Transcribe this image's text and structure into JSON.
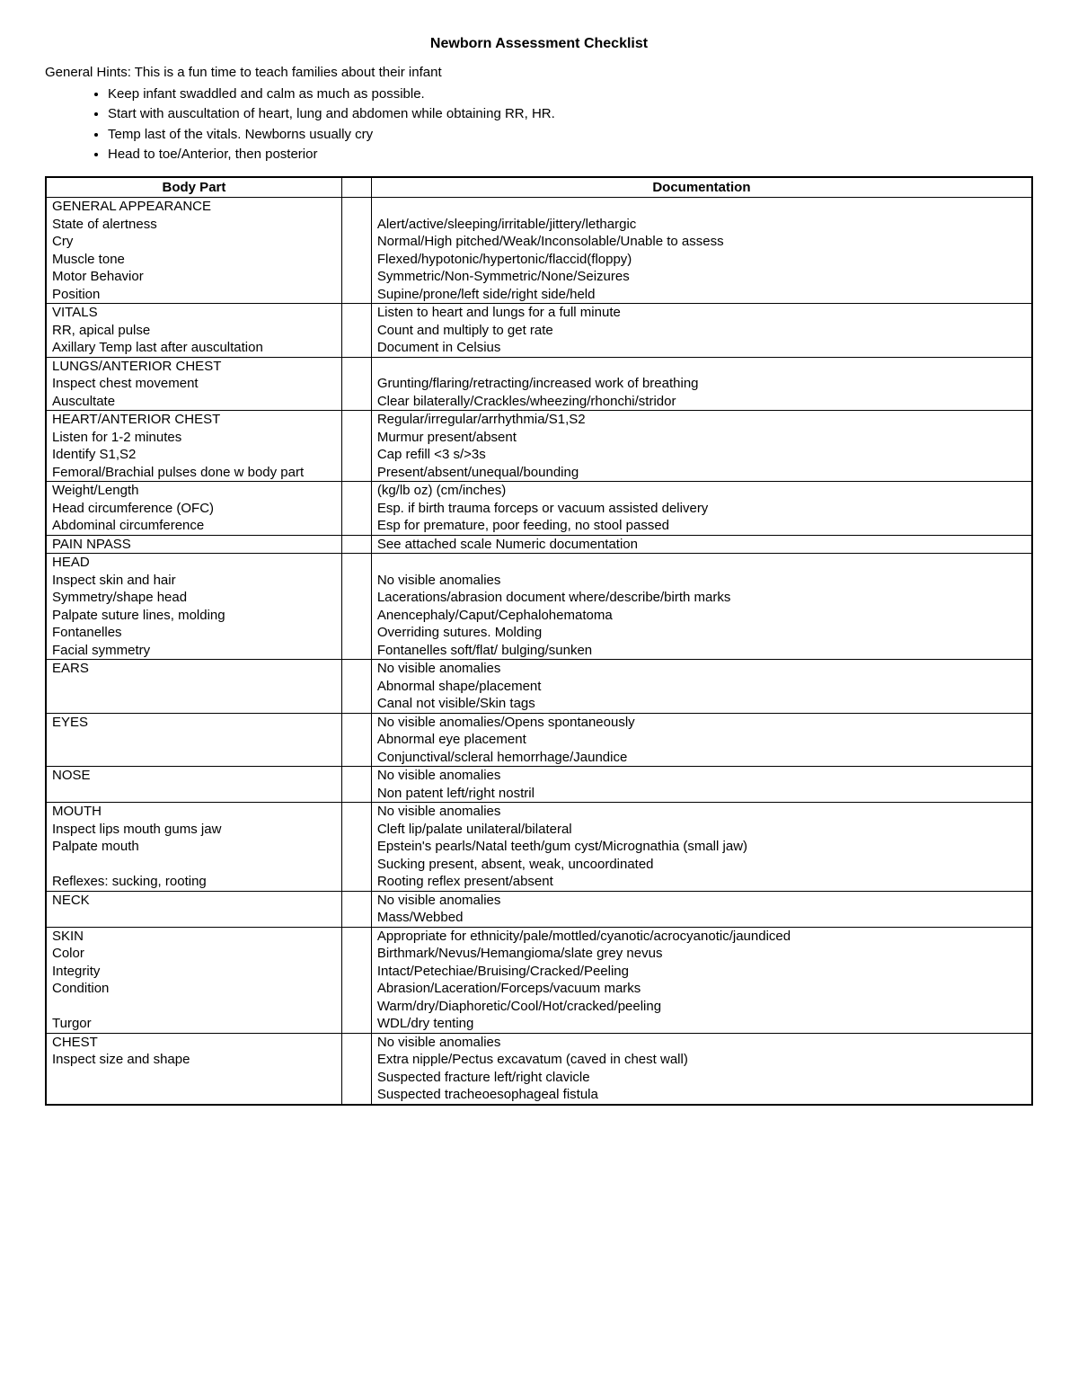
{
  "title": "Newborn Assessment Checklist",
  "hints_intro": "General Hints: This is a fun time to teach families about their infant",
  "hints": [
    "Keep infant swaddled and calm as much as possible.",
    "Start with auscultation of heart, lung and abdomen while obtaining RR, HR.",
    "Temp last of the vitals. Newborns usually cry",
    "Head to toe/Anterior, then posterior"
  ],
  "headers": {
    "body_part": "Body Part",
    "documentation": "Documentation"
  },
  "sections": [
    {
      "rows": [
        {
          "body": "GENERAL APPEARANCE",
          "doc": ""
        },
        {
          "body": "State of alertness",
          "doc": "Alert/active/sleeping/irritable/jittery/lethargic"
        },
        {
          "body": "Cry",
          "doc": "Normal/High pitched/Weak/Inconsolable/Unable to assess"
        },
        {
          "body": "Muscle tone",
          "doc": "Flexed/hypotonic/hypertonic/flaccid(floppy)"
        },
        {
          "body": "Motor Behavior",
          "doc": "Symmetric/Non-Symmetric/None/Seizures"
        },
        {
          "body": "Position",
          "doc": "Supine/prone/left side/right side/held"
        }
      ]
    },
    {
      "rows": [
        {
          "body": "VITALS",
          "doc": "Listen to heart and lungs for a full minute"
        },
        {
          "body": "RR, apical pulse",
          "doc": "Count and multiply to get rate"
        },
        {
          "body": "Axillary Temp last after auscultation",
          "doc": "Document in Celsius"
        }
      ]
    },
    {
      "rows": [
        {
          "body": "LUNGS/ANTERIOR CHEST",
          "doc": ""
        },
        {
          "body": "Inspect chest movement",
          "doc": "Grunting/flaring/retracting/increased work of breathing"
        },
        {
          "body": "Auscultate",
          "doc": "Clear bilaterally/Crackles/wheezing/rhonchi/stridor"
        }
      ]
    },
    {
      "rows": [
        {
          "body": "HEART/ANTERIOR CHEST",
          "doc": "Regular/irregular/arrhythmia/S1,S2"
        },
        {
          "body": "Listen for 1-2 minutes",
          "doc": "Murmur present/absent"
        },
        {
          "body": "Identify S1,S2",
          "doc": "Cap refill <3 s/>3s"
        },
        {
          "body": "Femoral/Brachial pulses done w body part",
          "doc": "Present/absent/unequal/bounding"
        }
      ]
    },
    {
      "rows": [
        {
          "body": "Weight/Length",
          "doc": "(kg/lb oz) (cm/inches)"
        },
        {
          "body": "Head circumference (OFC)",
          "doc": "Esp. if birth trauma forceps or vacuum assisted delivery"
        },
        {
          "body": "Abdominal circumference",
          "doc": "Esp for premature, poor feeding, no stool passed"
        }
      ]
    },
    {
      "rows": [
        {
          "body": "PAIN NPASS",
          "doc": "See attached scale Numeric documentation"
        }
      ]
    },
    {
      "rows": [
        {
          "body": "HEAD",
          "doc": ""
        },
        {
          "body": "Inspect skin and hair",
          "doc": "No visible anomalies"
        },
        {
          "body": "Symmetry/shape head",
          "doc": "Lacerations/abrasion document where/describe/birth marks"
        },
        {
          "body": "Palpate suture lines, molding",
          "doc": "Anencephaly/Caput/Cephalohematoma"
        },
        {
          "body": "Fontanelles",
          "doc": "Overriding sutures. Molding"
        },
        {
          "body": "Facial symmetry",
          "doc": "Fontanelles soft/flat/ bulging/sunken"
        }
      ]
    },
    {
      "rows": [
        {
          "body": "EARS",
          "doc": "No visible anomalies"
        },
        {
          "body": "",
          "doc": "Abnormal shape/placement"
        },
        {
          "body": "",
          "doc": "Canal not visible/Skin tags"
        }
      ]
    },
    {
      "rows": [
        {
          "body": "EYES",
          "doc": "No visible anomalies/Opens spontaneously"
        },
        {
          "body": "",
          "doc": "Abnormal eye placement"
        },
        {
          "body": "",
          "doc": "Conjunctival/scleral hemorrhage/Jaundice"
        }
      ]
    },
    {
      "rows": [
        {
          "body": "NOSE",
          "doc": "No visible anomalies"
        },
        {
          "body": "",
          "doc": "Non patent left/right nostril"
        }
      ]
    },
    {
      "rows": [
        {
          "body": "MOUTH",
          "doc": "No visible anomalies"
        },
        {
          "body": "Inspect lips mouth gums jaw",
          "doc": "Cleft lip/palate unilateral/bilateral"
        },
        {
          "body": "Palpate mouth",
          "doc": "Epstein's pearls/Natal teeth/gum cyst/Micrognathia (small jaw)"
        },
        {
          "body": "",
          "doc": "Sucking present, absent, weak, uncoordinated"
        },
        {
          "body": "Reflexes: sucking, rooting",
          "doc": "Rooting reflex present/absent"
        }
      ]
    },
    {
      "rows": [
        {
          "body": "NECK",
          "doc": "No visible anomalies"
        },
        {
          "body": "",
          "doc": "Mass/Webbed"
        }
      ]
    },
    {
      "rows": [
        {
          "body": "SKIN",
          "doc": "Appropriate for ethnicity/pale/mottled/cyanotic/acrocyanotic/jaundiced"
        },
        {
          "body": "Color",
          "doc": "Birthmark/Nevus/Hemangioma/slate grey nevus"
        },
        {
          "body": "Integrity",
          "doc": "Intact/Petechiae/Bruising/Cracked/Peeling"
        },
        {
          "body": "Condition",
          "doc": "Abrasion/Laceration/Forceps/vacuum marks"
        },
        {
          "body": "",
          "doc": "Warm/dry/Diaphoretic/Cool/Hot/cracked/peeling"
        },
        {
          "body": "Turgor",
          "doc": "WDL/dry tenting"
        }
      ]
    },
    {
      "rows": [
        {
          "body": "CHEST",
          "doc": "No visible anomalies"
        },
        {
          "body": "Inspect size and shape",
          "doc": "Extra nipple/Pectus excavatum (caved in chest wall)"
        },
        {
          "body": "",
          "doc": "Suspected fracture left/right clavicle"
        },
        {
          "body": "",
          "doc": "Suspected tracheoesophageal fistula"
        }
      ]
    }
  ]
}
